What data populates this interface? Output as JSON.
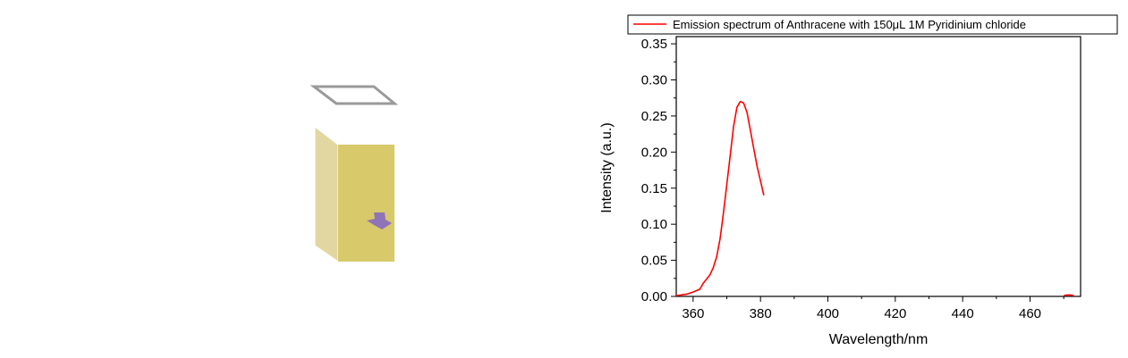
{
  "cuvette": {
    "liquid_color": "#d8c96a",
    "liquid_side_color": "#e2d7a0",
    "molecule_color": "#8f74b8",
    "rim_color": "#9a9a9a"
  },
  "chart_data": {
    "type": "line",
    "title": "",
    "xlabel": "Wavelength/nm",
    "ylabel": "Intensity (a.u.)",
    "xlim": [
      355,
      475
    ],
    "ylim": [
      0,
      0.36
    ],
    "xticks": [
      "360",
      "380",
      "400",
      "420",
      "440",
      "460"
    ],
    "xtick_values": [
      360,
      380,
      400,
      420,
      440,
      460
    ],
    "yticks": [
      "0.00",
      "0.05",
      "0.10",
      "0.15",
      "0.20",
      "0.25",
      "0.30",
      "0.35"
    ],
    "ytick_values": [
      0,
      0.05,
      0.1,
      0.15,
      0.2,
      0.25,
      0.3,
      0.35
    ],
    "grid": false,
    "legend_position": "top",
    "series": [
      {
        "name": "Emission spectrum of Anthracene with 150μL 1M Pyridinium chloride",
        "color": "#ff0000",
        "x": [
          355,
          358,
          360,
          362,
          363,
          365,
          366,
          367,
          368,
          369,
          370,
          371,
          372,
          373,
          374,
          375,
          376,
          377,
          378,
          379,
          380,
          381
        ],
        "y": [
          0.001,
          0.003,
          0.006,
          0.01,
          0.018,
          0.03,
          0.04,
          0.055,
          0.08,
          0.115,
          0.155,
          0.195,
          0.235,
          0.262,
          0.27,
          0.268,
          0.255,
          0.23,
          0.205,
          0.18,
          0.16,
          0.14
        ]
      },
      {
        "name": "",
        "color": "#ff0000",
        "x": [
          470,
          471,
          472,
          473
        ],
        "y": [
          0.001,
          0.002,
          0.002,
          0.001
        ]
      }
    ]
  }
}
